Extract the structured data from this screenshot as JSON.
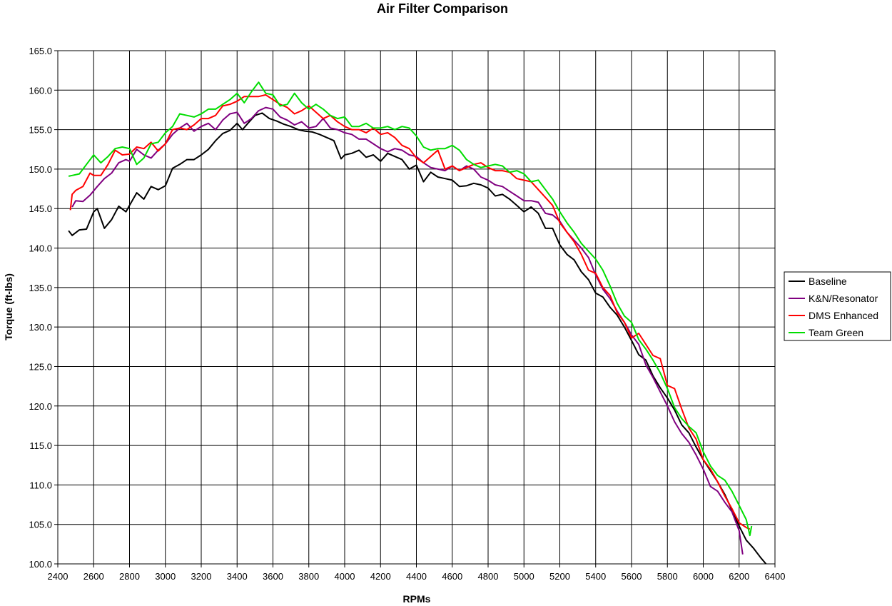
{
  "chart_data": {
    "type": "line",
    "title": "Air Filter Comparison",
    "xlabel": "RPMs",
    "ylabel": "Torque (ft-lbs)",
    "xlim": [
      2400,
      6400
    ],
    "ylim": [
      100,
      165
    ],
    "x_ticks": [
      2400,
      2600,
      2800,
      3000,
      3200,
      3400,
      3600,
      3800,
      4000,
      4200,
      4400,
      4600,
      4800,
      5000,
      5200,
      5400,
      5600,
      5800,
      6000,
      6200,
      6400
    ],
    "y_ticks": [
      100,
      105,
      110,
      115,
      120,
      125,
      130,
      135,
      140,
      145,
      150,
      155,
      160,
      165
    ],
    "x_tick_labels": [
      "2400",
      "2600",
      "2800",
      "3000",
      "3200",
      "3400",
      "3600",
      "3800",
      "4000",
      "4200",
      "4400",
      "4600",
      "4800",
      "5000",
      "5200",
      "5400",
      "5600",
      "5800",
      "6000",
      "6200",
      "6400"
    ],
    "y_tick_labels": [
      "100.0",
      "105.0",
      "110.0",
      "115.0",
      "120.0",
      "125.0",
      "130.0",
      "135.0",
      "140.0",
      "145.0",
      "150.0",
      "155.0",
      "160.0",
      "165.0"
    ],
    "grid": true,
    "legend_position": "right",
    "series": [
      {
        "name": "Baseline",
        "color": "#000000",
        "x": [
          2460,
          2480,
          2520,
          2560,
          2600,
          2620,
          2660,
          2700,
          2740,
          2780,
          2800,
          2840,
          2880,
          2920,
          2960,
          3000,
          3040,
          3080,
          3120,
          3160,
          3200,
          3240,
          3280,
          3320,
          3360,
          3400,
          3430,
          3460,
          3500,
          3540,
          3580,
          3620,
          3660,
          3700,
          3740,
          3780,
          3820,
          3860,
          3900,
          3940,
          3980,
          4000,
          4040,
          4080,
          4120,
          4160,
          4200,
          4240,
          4280,
          4320,
          4360,
          4400,
          4440,
          4480,
          4520,
          4560,
          4600,
          4640,
          4680,
          4720,
          4760,
          4800,
          4840,
          4880,
          4920,
          4960,
          5000,
          5040,
          5080,
          5120,
          5160,
          5200,
          5240,
          5280,
          5320,
          5360,
          5400,
          5440,
          5480,
          5520,
          5560,
          5600,
          5640,
          5680,
          5720,
          5760,
          5800,
          5840,
          5880,
          5920,
          5960,
          6000,
          6040,
          6080,
          6120,
          6160,
          6200,
          6240,
          6280,
          6320,
          6350
        ],
        "y": [
          142.2,
          141.6,
          142.3,
          142.4,
          144.6,
          145.0,
          142.5,
          143.6,
          145.3,
          144.6,
          145.4,
          147.0,
          146.2,
          147.8,
          147.4,
          147.9,
          150.1,
          150.6,
          151.2,
          151.2,
          151.8,
          152.5,
          153.6,
          154.5,
          154.9,
          155.8,
          155.0,
          155.8,
          156.8,
          157.1,
          156.4,
          156.1,
          155.7,
          155.4,
          155.0,
          154.8,
          154.7,
          154.4,
          154.0,
          153.6,
          151.3,
          151.8,
          152.0,
          152.4,
          151.5,
          151.8,
          151.0,
          152.0,
          151.6,
          151.2,
          150.0,
          150.5,
          148.4,
          149.6,
          149.0,
          148.8,
          148.6,
          147.8,
          147.9,
          148.2,
          148.0,
          147.6,
          146.6,
          146.8,
          146.2,
          145.4,
          144.6,
          145.2,
          144.4,
          142.5,
          142.5,
          140.4,
          139.2,
          138.5,
          137.0,
          136.0,
          134.3,
          133.8,
          132.5,
          131.5,
          130.0,
          128.3,
          126.5,
          125.8,
          123.8,
          122.3,
          121.0,
          119.5,
          117.6,
          116.6,
          114.8,
          113.2,
          111.8,
          110.4,
          108.8,
          106.8,
          104.8,
          103.0,
          102.0,
          100.8,
          100.0
        ]
      },
      {
        "name": "K&N/Resonator",
        "color": "#800080",
        "x": [
          2480,
          2500,
          2540,
          2580,
          2620,
          2660,
          2700,
          2740,
          2780,
          2800,
          2840,
          2880,
          2920,
          2960,
          3000,
          3040,
          3080,
          3120,
          3160,
          3200,
          3240,
          3280,
          3320,
          3360,
          3400,
          3440,
          3480,
          3520,
          3560,
          3600,
          3640,
          3680,
          3720,
          3760,
          3800,
          3840,
          3880,
          3920,
          3960,
          4000,
          4040,
          4080,
          4120,
          4160,
          4200,
          4240,
          4280,
          4320,
          4360,
          4400,
          4440,
          4480,
          4520,
          4560,
          4600,
          4640,
          4680,
          4720,
          4760,
          4800,
          4840,
          4880,
          4920,
          4960,
          5000,
          5040,
          5080,
          5120,
          5160,
          5200,
          5240,
          5280,
          5320,
          5360,
          5400,
          5440,
          5480,
          5520,
          5560,
          5600,
          5640,
          5680,
          5720,
          5760,
          5800,
          5840,
          5880,
          5920,
          5960,
          6000,
          6040,
          6080,
          6120,
          6160,
          6200,
          6220
        ],
        "y": [
          145.2,
          146.0,
          145.9,
          146.7,
          147.8,
          148.8,
          149.5,
          150.8,
          151.2,
          151.0,
          152.5,
          151.8,
          151.4,
          152.4,
          153.2,
          154.4,
          155.2,
          155.8,
          154.8,
          155.4,
          155.8,
          155.0,
          156.2,
          157.0,
          157.2,
          155.8,
          156.4,
          157.4,
          157.8,
          157.6,
          156.6,
          156.2,
          155.6,
          156.0,
          155.2,
          155.4,
          156.4,
          155.2,
          155.0,
          154.6,
          154.4,
          153.8,
          153.8,
          153.2,
          152.6,
          152.2,
          152.6,
          152.4,
          151.8,
          151.6,
          150.8,
          150.2,
          150.0,
          149.8,
          150.4,
          149.8,
          150.4,
          150.0,
          149.0,
          148.6,
          148.0,
          147.8,
          147.2,
          146.6,
          146.0,
          146.0,
          145.8,
          144.4,
          144.2,
          143.4,
          142.0,
          141.0,
          140.0,
          138.8,
          136.6,
          134.8,
          133.6,
          132.0,
          130.6,
          129.0,
          127.8,
          125.2,
          123.6,
          121.8,
          120.0,
          118.0,
          116.5,
          115.4,
          113.8,
          112.0,
          109.8,
          109.2,
          107.8,
          106.6,
          104.2,
          101.2
        ]
      },
      {
        "name": "DMS Enhanced",
        "color": "#ff0000",
        "x": [
          2470,
          2480,
          2500,
          2540,
          2580,
          2600,
          2640,
          2680,
          2720,
          2760,
          2800,
          2840,
          2880,
          2920,
          2960,
          3000,
          3040,
          3080,
          3120,
          3160,
          3200,
          3240,
          3280,
          3320,
          3360,
          3400,
          3440,
          3480,
          3520,
          3560,
          3600,
          3640,
          3680,
          3720,
          3760,
          3800,
          3840,
          3880,
          3920,
          3960,
          4000,
          4040,
          4080,
          4120,
          4160,
          4200,
          4240,
          4280,
          4320,
          4360,
          4400,
          4440,
          4480,
          4520,
          4560,
          4600,
          4640,
          4680,
          4720,
          4760,
          4800,
          4840,
          4880,
          4920,
          4960,
          5000,
          5040,
          5080,
          5120,
          5160,
          5200,
          5240,
          5280,
          5320,
          5360,
          5400,
          5440,
          5480,
          5520,
          5560,
          5600,
          5640,
          5680,
          5720,
          5760,
          5800,
          5840,
          5880,
          5920,
          5960,
          6000,
          6040,
          6080,
          6120,
          6160,
          6200,
          6240,
          6260
        ],
        "y": [
          144.8,
          146.8,
          147.3,
          147.8,
          149.5,
          149.2,
          149.2,
          150.6,
          152.4,
          151.8,
          151.9,
          152.8,
          152.6,
          153.4,
          152.3,
          153.2,
          155.0,
          155.2,
          155.0,
          155.6,
          156.4,
          156.4,
          156.8,
          158.0,
          158.2,
          158.6,
          159.2,
          159.2,
          159.2,
          159.4,
          158.8,
          158.2,
          157.8,
          157.0,
          157.4,
          158.0,
          157.2,
          156.4,
          156.8,
          156.0,
          155.4,
          155.0,
          155.0,
          154.6,
          155.2,
          154.4,
          154.6,
          154.0,
          153.0,
          152.6,
          151.4,
          150.8,
          151.6,
          152.4,
          150.0,
          150.4,
          149.8,
          150.2,
          150.6,
          150.8,
          150.2,
          149.8,
          149.8,
          149.6,
          148.8,
          148.6,
          148.4,
          147.4,
          146.4,
          145.4,
          143.2,
          142.0,
          140.8,
          139.2,
          137.2,
          136.8,
          135.0,
          134.0,
          131.8,
          130.6,
          128.6,
          129.2,
          127.8,
          126.4,
          126.0,
          122.6,
          122.2,
          119.6,
          117.2,
          115.8,
          113.2,
          112.0,
          110.4,
          108.6,
          107.0,
          105.2,
          104.6,
          104.4
        ]
      },
      {
        "name": "Team Green",
        "color": "#00dd00",
        "x": [
          2460,
          2480,
          2520,
          2560,
          2600,
          2640,
          2680,
          2720,
          2760,
          2800,
          2840,
          2880,
          2920,
          2960,
          3000,
          3040,
          3080,
          3120,
          3160,
          3200,
          3240,
          3280,
          3320,
          3360,
          3400,
          3440,
          3480,
          3520,
          3560,
          3600,
          3640,
          3680,
          3720,
          3760,
          3800,
          3840,
          3880,
          3920,
          3960,
          4000,
          4040,
          4080,
          4120,
          4160,
          4200,
          4240,
          4280,
          4320,
          4360,
          4400,
          4440,
          4480,
          4520,
          4560,
          4600,
          4640,
          4680,
          4720,
          4760,
          4800,
          4840,
          4880,
          4920,
          4960,
          5000,
          5040,
          5080,
          5120,
          5160,
          5200,
          5240,
          5280,
          5320,
          5360,
          5400,
          5440,
          5480,
          5520,
          5560,
          5600,
          5640,
          5680,
          5720,
          5760,
          5800,
          5840,
          5880,
          5920,
          5960,
          6000,
          6040,
          6080,
          6120,
          6160,
          6200,
          6240,
          6260,
          6270
        ],
        "y": [
          149.1,
          149.2,
          149.4,
          150.6,
          151.8,
          150.8,
          151.6,
          152.6,
          152.8,
          152.6,
          150.6,
          151.4,
          153.2,
          153.4,
          154.6,
          155.4,
          157.0,
          156.8,
          156.6,
          157.0,
          157.6,
          157.6,
          158.2,
          158.8,
          159.6,
          158.4,
          159.8,
          161.0,
          159.6,
          159.4,
          158.0,
          158.2,
          159.6,
          158.4,
          157.6,
          158.2,
          157.6,
          156.8,
          156.4,
          156.6,
          155.4,
          155.4,
          155.8,
          155.2,
          155.2,
          155.4,
          155.0,
          155.4,
          155.2,
          154.2,
          152.8,
          152.4,
          152.6,
          152.6,
          153.0,
          152.4,
          151.2,
          150.6,
          150.2,
          150.4,
          150.6,
          150.4,
          149.6,
          149.8,
          149.4,
          148.4,
          148.6,
          147.4,
          146.2,
          144.6,
          143.2,
          142.0,
          140.6,
          139.6,
          138.6,
          137.2,
          135.2,
          133.0,
          131.4,
          130.6,
          128.4,
          127.2,
          125.8,
          124.2,
          122.2,
          119.8,
          118.4,
          117.4,
          116.6,
          114.2,
          112.4,
          111.2,
          110.6,
          109.2,
          107.4,
          105.6,
          103.6,
          104.8
        ]
      }
    ]
  }
}
